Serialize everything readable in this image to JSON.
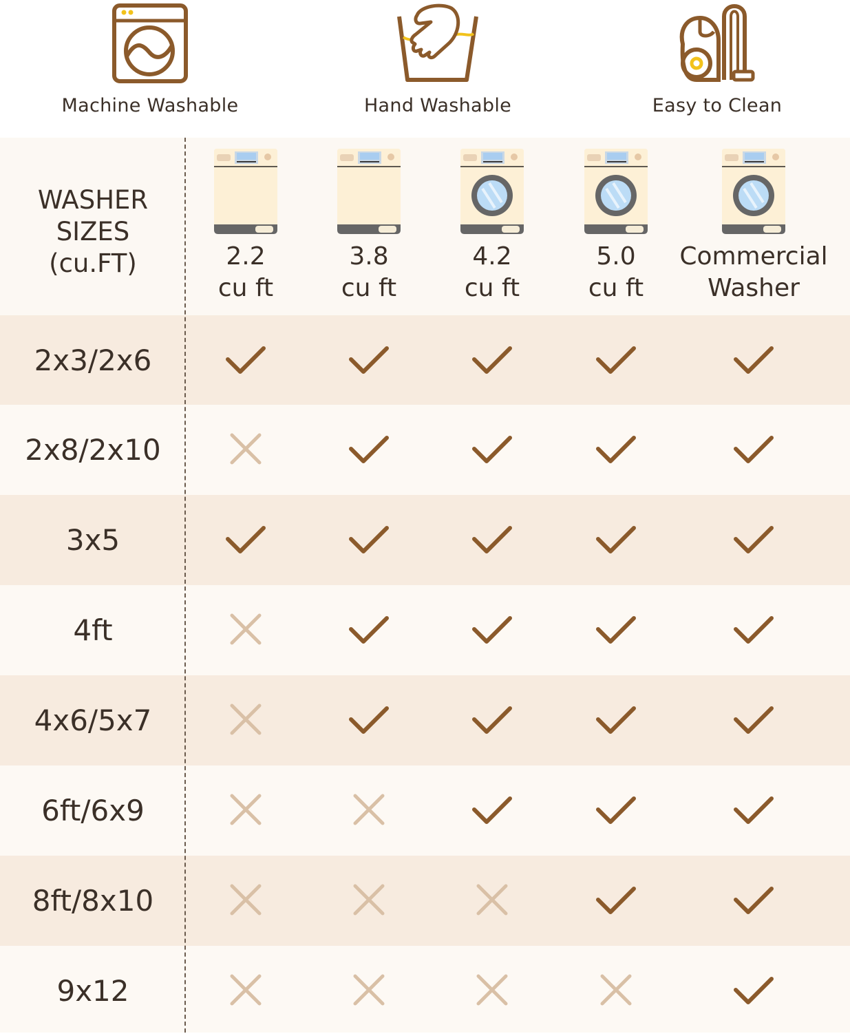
{
  "features": [
    {
      "label": "Machine Washable",
      "icon": "washing-machine-icon"
    },
    {
      "label": "Hand Washable",
      "icon": "hand-wash-icon"
    },
    {
      "label": "Easy to Clean",
      "icon": "vacuum-cleaner-icon"
    }
  ],
  "table": {
    "header_title": [
      "WASHER",
      "SIZES",
      "(cu.FT)"
    ],
    "columns": [
      {
        "line1": "2.2",
        "line2": "cu ft",
        "type": "top-load"
      },
      {
        "line1": "3.8",
        "line2": "cu ft",
        "type": "top-load"
      },
      {
        "line1": "4.2",
        "line2": "cu ft",
        "type": "front-load"
      },
      {
        "line1": "5.0",
        "line2": "cu ft",
        "type": "front-load"
      },
      {
        "line1": "Commercial",
        "line2": "Washer",
        "type": "front-load"
      }
    ],
    "rows": [
      {
        "size": "2x3/2x6",
        "fits": [
          true,
          true,
          true,
          true,
          true
        ]
      },
      {
        "size": "2x8/2x10",
        "fits": [
          false,
          true,
          true,
          true,
          true
        ]
      },
      {
        "size": "3x5",
        "fits": [
          true,
          true,
          true,
          true,
          true
        ]
      },
      {
        "size": "4ft",
        "fits": [
          false,
          true,
          true,
          true,
          true
        ]
      },
      {
        "size": "4x6/5x7",
        "fits": [
          false,
          true,
          true,
          true,
          true
        ]
      },
      {
        "size": "6ft/6x9",
        "fits": [
          false,
          false,
          true,
          true,
          true
        ]
      },
      {
        "size": "8ft/8x10",
        "fits": [
          false,
          false,
          false,
          true,
          true
        ]
      },
      {
        "size": "9x12",
        "fits": [
          false,
          false,
          false,
          false,
          true
        ]
      }
    ]
  },
  "colors": {
    "check": "#8b5a2b",
    "cross": "#d9c0a6",
    "icon_stroke": "#8b5a2b",
    "icon_accent": "#f2c21b",
    "band_dark": "#f7ebdf",
    "band_light": "#fdf9f4"
  }
}
